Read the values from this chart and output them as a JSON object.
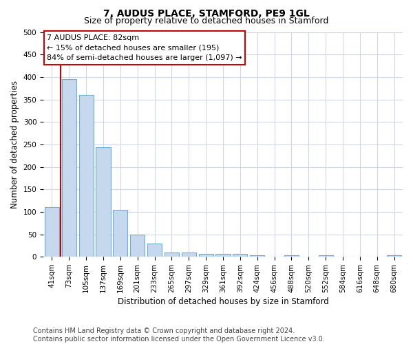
{
  "title1": "7, AUDUS PLACE, STAMFORD, PE9 1GL",
  "title2": "Size of property relative to detached houses in Stamford",
  "xlabel": "Distribution of detached houses by size in Stamford",
  "ylabel": "Number of detached properties",
  "categories": [
    "41sqm",
    "73sqm",
    "105sqm",
    "137sqm",
    "169sqm",
    "201sqm",
    "233sqm",
    "265sqm",
    "297sqm",
    "329sqm",
    "361sqm",
    "392sqm",
    "424sqm",
    "456sqm",
    "488sqm",
    "520sqm",
    "552sqm",
    "584sqm",
    "616sqm",
    "648sqm",
    "680sqm"
  ],
  "values": [
    110,
    395,
    360,
    243,
    105,
    50,
    30,
    10,
    10,
    6,
    6,
    7,
    3,
    0,
    4,
    0,
    4,
    0,
    0,
    0,
    4
  ],
  "bar_color": "#c5d8ee",
  "bar_edge_color": "#6aaed6",
  "vline_color": "#cc0000",
  "vline_pos": 1.5,
  "annotation_text": "7 AUDUS PLACE: 82sqm\n← 15% of detached houses are smaller (195)\n84% of semi-detached houses are larger (1,097) →",
  "annotation_box_facecolor": "#ffffff",
  "annotation_box_edgecolor": "#cc0000",
  "ylim": [
    0,
    500
  ],
  "yticks": [
    0,
    50,
    100,
    150,
    200,
    250,
    300,
    350,
    400,
    450,
    500
  ],
  "footer_line1": "Contains HM Land Registry data © Crown copyright and database right 2024.",
  "footer_line2": "Contains public sector information licensed under the Open Government Licence v3.0.",
  "bg_color": "#ffffff",
  "plot_bg_color": "#ffffff",
  "grid_color": "#d0d8e8",
  "title1_fontsize": 10,
  "title2_fontsize": 9,
  "axis_label_fontsize": 8.5,
  "tick_fontsize": 7.5,
  "annotation_fontsize": 8,
  "footer_fontsize": 7
}
